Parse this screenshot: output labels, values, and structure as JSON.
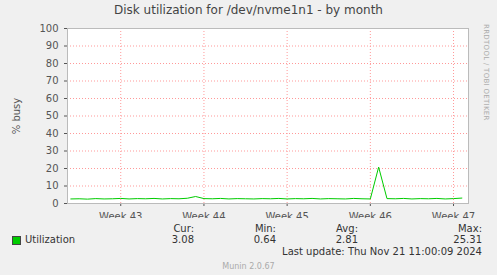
{
  "chart_data": {
    "type": "line",
    "title": "Disk utilization for /dev/nvme1n1 - by month",
    "y_label": "% busy",
    "x": [
      42.4,
      42.5,
      42.6,
      42.7,
      42.8,
      42.9,
      43.0,
      43.1,
      43.2,
      43.3,
      43.4,
      43.5,
      43.6,
      43.7,
      43.8,
      43.9,
      44.0,
      44.1,
      44.2,
      44.3,
      44.4,
      44.5,
      44.6,
      44.7,
      44.8,
      44.9,
      45.0,
      45.1,
      45.2,
      45.3,
      45.4,
      45.5,
      45.6,
      45.7,
      45.8,
      45.9,
      46.0,
      46.1,
      46.2,
      46.3,
      46.4,
      46.5,
      46.6,
      46.7,
      46.8,
      46.9,
      47.0,
      47.1
    ],
    "series": [
      {
        "name": "Utilization",
        "color": "#00cc00",
        "values": [
          2.6,
          2.7,
          2.5,
          2.8,
          2.6,
          2.7,
          2.9,
          2.6,
          2.8,
          2.7,
          2.9,
          2.6,
          2.8,
          2.7,
          3.0,
          4.0,
          2.8,
          2.7,
          2.9,
          2.6,
          2.8,
          2.7,
          2.6,
          2.8,
          2.7,
          2.9,
          2.6,
          2.8,
          2.7,
          2.9,
          2.6,
          2.8,
          2.7,
          2.6,
          2.9,
          2.7,
          2.6,
          20.8,
          2.8,
          2.7,
          2.9,
          2.6,
          2.8,
          2.7,
          2.9,
          2.6,
          2.8,
          3.1
        ]
      }
    ],
    "xlim": [
      42.36,
      47.18
    ],
    "xticks": [
      {
        "value": 43,
        "label": "Week 43"
      },
      {
        "value": 44,
        "label": "Week 44"
      },
      {
        "value": 45,
        "label": "Week 45"
      },
      {
        "value": 46,
        "label": "Week 46"
      },
      {
        "value": 47,
        "label": "Week 47"
      }
    ],
    "ylim": [
      0,
      100
    ],
    "yticks": [
      0,
      10,
      20,
      30,
      40,
      50,
      60,
      70,
      80,
      90,
      100
    ],
    "grid": true,
    "stats": [
      {
        "label": "Cur:",
        "value": 3.08
      },
      {
        "label": "Min:",
        "value": 0.64
      },
      {
        "label": "Avg:",
        "value": 2.81
      },
      {
        "label": "Max:",
        "value": 25.31
      }
    ],
    "last_update": "Last update: Thu Nov 21 11:00:09 2024",
    "footer": "Munin 2.0.67",
    "side_text": "RRDTOOL / TOBI OETIKER"
  }
}
